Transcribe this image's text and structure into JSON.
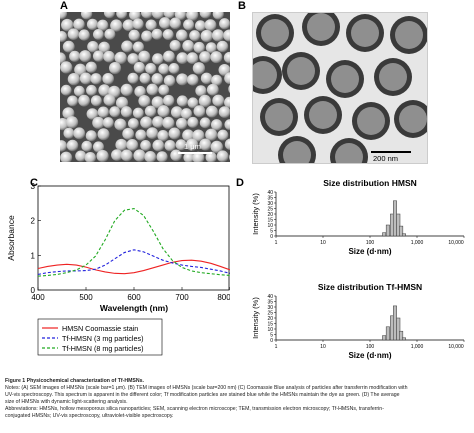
{
  "panels": {
    "a": {
      "letter": "A",
      "scale_label": "1 μm"
    },
    "b": {
      "letter": "B",
      "scale_label": "200 nm"
    },
    "c": {
      "letter": "C"
    },
    "d": {
      "letter": "D"
    }
  },
  "chart_data": [
    {
      "type": "line",
      "xlabel": "Wavelength (nm)",
      "ylabel": "Absorbance",
      "xlim": [
        400,
        800
      ],
      "ylim": [
        0,
        3
      ],
      "xticks": [
        "400",
        "500",
        "600",
        "700",
        "800"
      ],
      "yticks": [
        "0",
        "1",
        "2",
        "3"
      ],
      "legend_position": "bottom-left",
      "series": [
        {
          "name": "HMSN Coomassie stain",
          "color": "#ee2222",
          "style": "solid",
          "x": [
            400,
            420,
            440,
            460,
            480,
            500,
            520,
            540,
            560,
            580,
            600,
            620,
            640,
            660,
            680,
            700,
            720,
            740,
            760,
            780,
            800
          ],
          "y": [
            0.62,
            0.68,
            0.72,
            0.74,
            0.72,
            0.66,
            0.58,
            0.52,
            0.48,
            0.47,
            0.5,
            0.56,
            0.64,
            0.72,
            0.8,
            0.85,
            0.86,
            0.83,
            0.77,
            0.68,
            0.58
          ]
        },
        {
          "name": "Tf-HMSN (3 mg particles)",
          "color": "#2222dd",
          "style": "dashed",
          "x": [
            400,
            420,
            440,
            460,
            480,
            500,
            520,
            540,
            560,
            580,
            600,
            620,
            640,
            660,
            680,
            700,
            720,
            740,
            760,
            780,
            800
          ],
          "y": [
            0.45,
            0.5,
            0.53,
            0.55,
            0.55,
            0.56,
            0.6,
            0.72,
            0.9,
            1.08,
            1.16,
            1.1,
            0.98,
            0.86,
            0.78,
            0.72,
            0.68,
            0.65,
            0.6,
            0.55,
            0.48
          ]
        },
        {
          "name": "Tf-HMSN (8 mg particles)",
          "color": "#22aa22",
          "style": "dashed",
          "x": [
            400,
            420,
            440,
            460,
            480,
            500,
            520,
            540,
            560,
            580,
            600,
            620,
            640,
            660,
            680,
            700,
            720,
            740,
            760,
            780,
            800
          ],
          "y": [
            0.4,
            0.42,
            0.45,
            0.5,
            0.58,
            0.72,
            0.98,
            1.45,
            2.0,
            2.3,
            2.35,
            2.15,
            1.7,
            1.2,
            0.85,
            0.65,
            0.55,
            0.5,
            0.47,
            0.44,
            0.42
          ]
        }
      ]
    },
    {
      "type": "bar",
      "title": "Size distribution HMSN",
      "xlabel": "Size (d·nm)",
      "ylabel": "Intensity (%)",
      "ylim": [
        0,
        40
      ],
      "yticks": [
        "0",
        "5",
        "10",
        "15",
        "20",
        "25",
        "30",
        "35",
        "40"
      ],
      "xticks": [
        "1",
        "10",
        "100",
        "1,000",
        "10,000"
      ],
      "xscale": "log",
      "x": [
        200,
        240,
        295,
        340,
        400,
        460,
        530
      ],
      "values": [
        3,
        10,
        20,
        32,
        20,
        9,
        2
      ]
    },
    {
      "type": "bar",
      "title": "Size distribution Tf-HMSN",
      "xlabel": "Size (d·nm)",
      "ylabel": "Intensity (%)",
      "ylim": [
        0,
        40
      ],
      "yticks": [
        "0",
        "5",
        "10",
        "15",
        "20",
        "25",
        "30",
        "35",
        "40"
      ],
      "xticks": [
        "1",
        "10",
        "100",
        "1,000",
        "10,000"
      ],
      "xscale": "log",
      "x": [
        200,
        240,
        295,
        340,
        400,
        460,
        530
      ],
      "values": [
        4,
        12,
        22,
        31,
        20,
        8,
        2
      ]
    }
  ],
  "caption": {
    "line1": "Figure 1 Physicochemical characterization of Tf-HMSNs.",
    "line2": "Notes: (A) SEM images of HMSNs (scale bar=1 μm). (B) TEM images of HMSNs (scale bar=200 nm) (C) Coomassie Blue analysis of particles after transferrin modification with",
    "line3": "UV-vis spectroscopy. This spectrum is apparent in the different color; Tf modification particles are stained blue while the HMSNs maintain the dye as green. (D) The average",
    "line4": "size of HMSNs with dynamic light-scattering analysis.",
    "line5": "Abbreviations: HMSNs, hollow mesoporous silica nanoparticles; SEM, scanning electron microscope; TEM, transmission electron microscopy; Tf-HMSNs, transferrin-",
    "line6": "conjugated HMSNs; UV-vis spectroscopy, ultraviolet-visible spectroscopy."
  }
}
